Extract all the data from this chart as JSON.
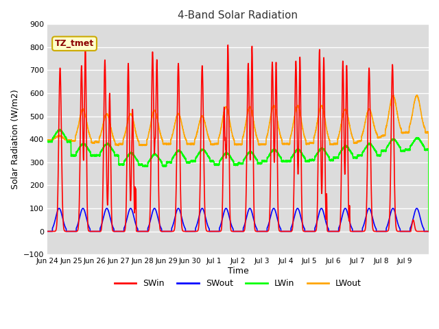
{
  "title": "4-Band Solar Radiation",
  "xlabel": "Time",
  "ylabel": "Solar Radiation (W/m2)",
  "ylim": [
    -100,
    900
  ],
  "annotation_text": "TZ_tmet",
  "annotation_color": "#8B0000",
  "annotation_bg": "#FFFFCC",
  "annotation_border": "#CCAA00",
  "fig_bg": "#FFFFFF",
  "plot_bg": "#DCDCDC",
  "grid_color": "#FFFFFF",
  "legend_labels": [
    "SWin",
    "SWout",
    "LWin",
    "LWout"
  ],
  "legend_colors": [
    "#FF0000",
    "#0000FF",
    "#00FF00",
    "#FFA500"
  ],
  "sw_in_color": "#FF0000",
  "sw_out_color": "#0000FF",
  "lw_in_color": "#00FF00",
  "lw_out_color": "#FFA500",
  "line_width": 1.2,
  "n_days": 16
}
